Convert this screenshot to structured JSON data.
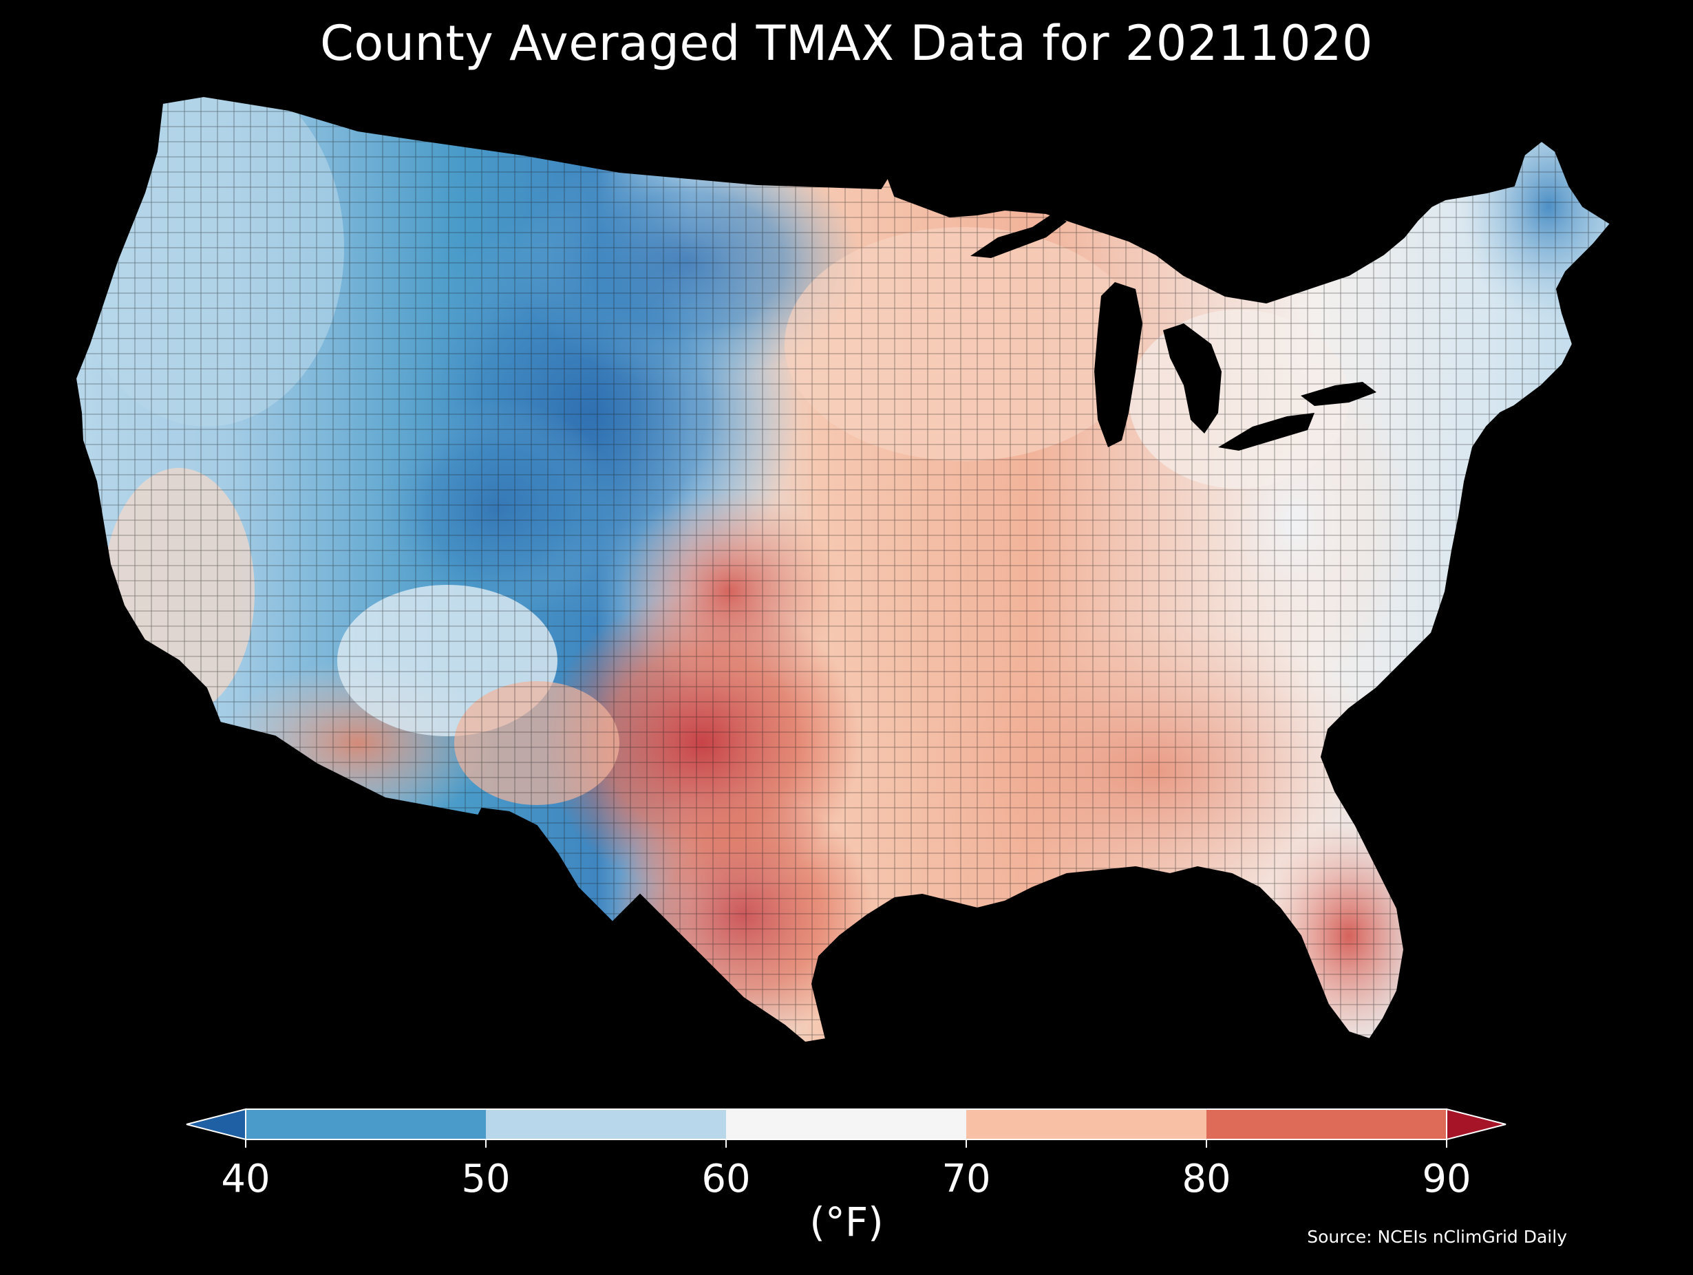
{
  "title": "County Averaged TMAX Data for 20211020",
  "colorbar": {
    "unit_label": "(°F)",
    "ticks": [
      "40",
      "50",
      "60",
      "70",
      "80",
      "90"
    ],
    "bins": [
      {
        "range": [
          40,
          50
        ],
        "color": "#4a9bc9"
      },
      {
        "range": [
          50,
          60
        ],
        "color": "#b8d7ea"
      },
      {
        "range": [
          60,
          70
        ],
        "color": "#f5f5f5"
      },
      {
        "range": [
          70,
          80
        ],
        "color": "#f8c1a6"
      },
      {
        "range": [
          80,
          90
        ],
        "color": "#de6b57"
      }
    ],
    "under_color": "#1f5fa3",
    "over_color": "#a61428"
  },
  "source": "Source: NCEIs nClimGrid Daily",
  "map": {
    "region": "Contiguous United States",
    "variable": "TMAX",
    "date": "20211020",
    "background": "#000000",
    "border_color": "#222222"
  }
}
